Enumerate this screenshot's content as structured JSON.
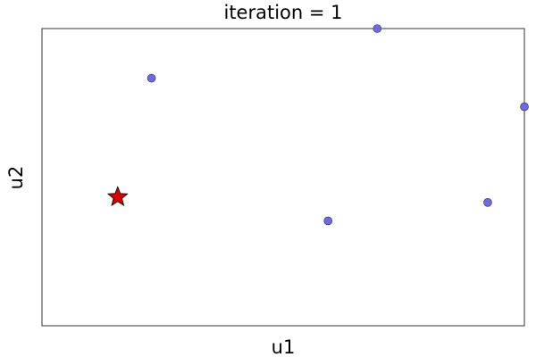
{
  "chart_data": {
    "type": "scatter",
    "title": "iteration = 1",
    "xlabel": "u1",
    "ylabel": "u2",
    "xlim": [
      0,
      1
    ],
    "ylim": [
      0,
      1
    ],
    "grid": false,
    "series": [
      {
        "marker": "circle",
        "color": "#6b6bea",
        "edge_color": "#333333",
        "points": [
          {
            "x": 0.227,
            "y": 0.833
          },
          {
            "x": 0.695,
            "y": 1.0
          },
          {
            "x": 1.0,
            "y": 0.737
          },
          {
            "x": 0.593,
            "y": 0.353
          },
          {
            "x": 0.924,
            "y": 0.415
          }
        ]
      },
      {
        "marker": "star",
        "color": "#dd0000",
        "edge_color": "#000000",
        "points": [
          {
            "x": 0.157,
            "y": 0.433
          }
        ]
      }
    ]
  }
}
